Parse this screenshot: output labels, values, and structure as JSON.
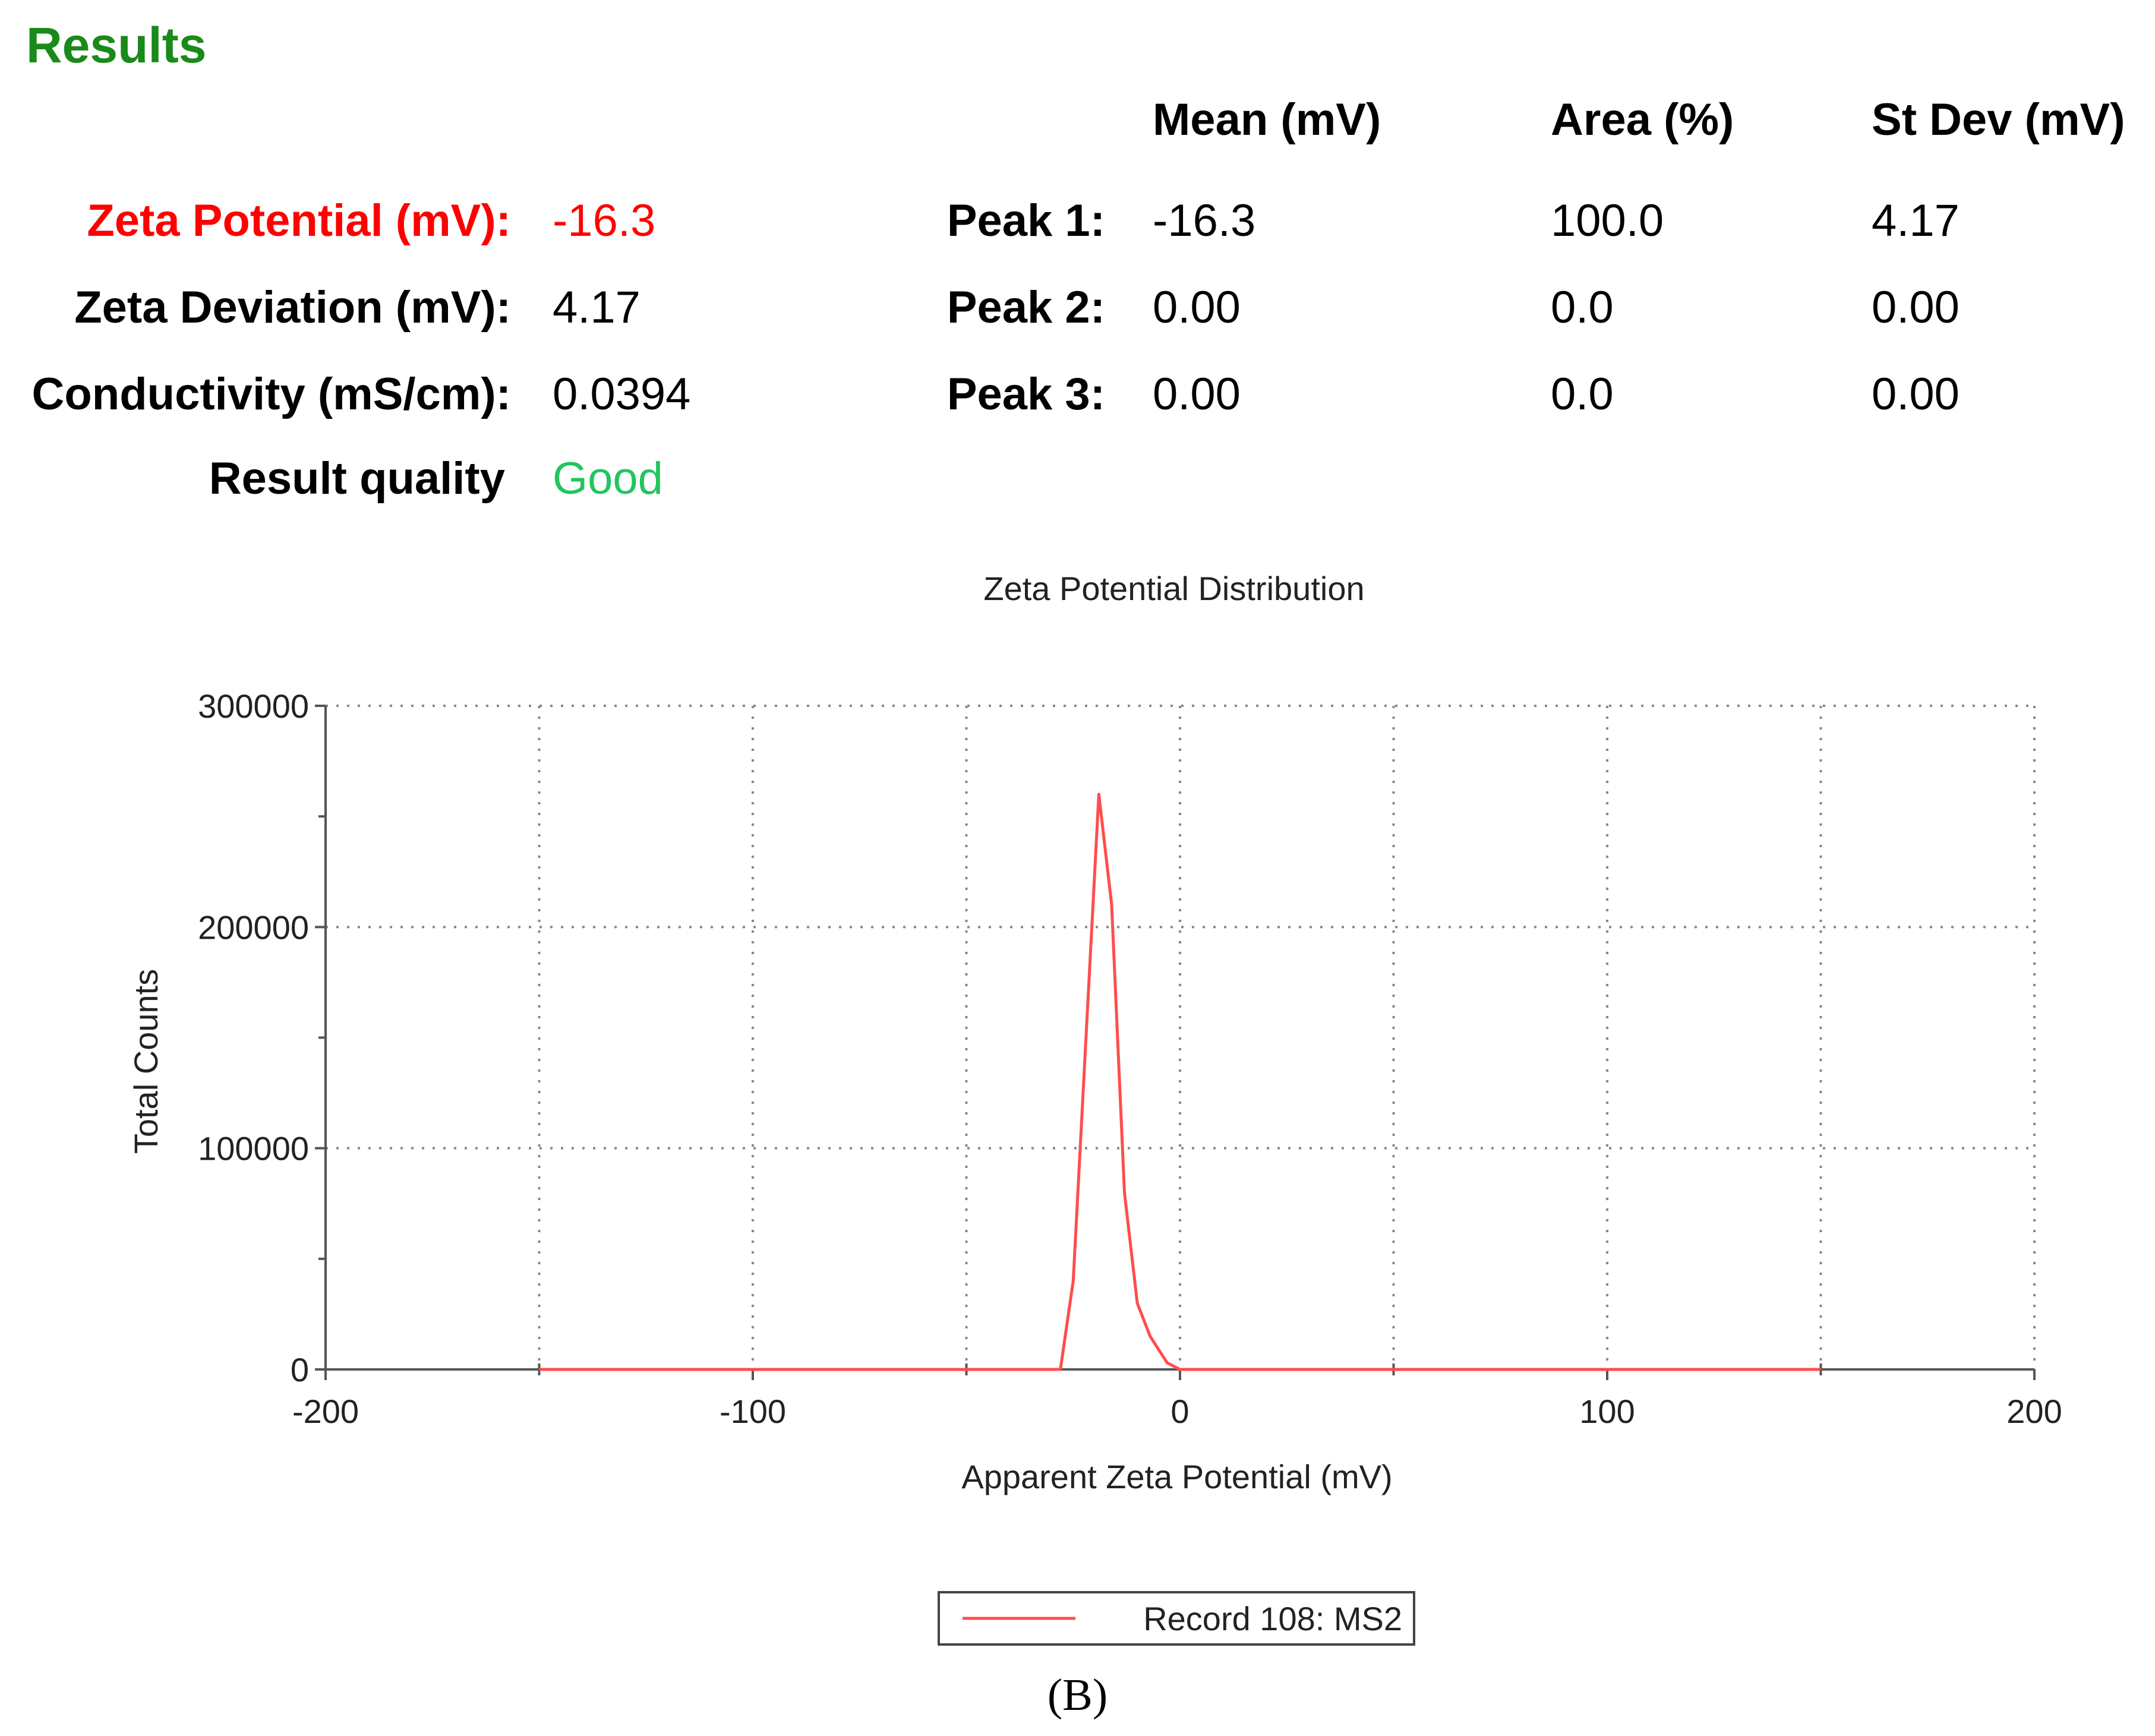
{
  "results": {
    "title": "Results",
    "headers": {
      "mean": "Mean (mV)",
      "area": "Area (%)",
      "stdev": "St Dev (mV)"
    },
    "summary": [
      {
        "label": "Zeta Potential (mV):",
        "value": "-16.3",
        "color": "#ff0000"
      },
      {
        "label": "Zeta Deviation (mV):",
        "value": "4.17"
      },
      {
        "label": "Conductivity (mS/cm):",
        "value": "0.0394"
      },
      {
        "label": "Result quality",
        "value": "Good",
        "color": "#22c55e"
      }
    ],
    "peaks": [
      {
        "label": "Peak 1:",
        "mean": "-16.3",
        "area": "100.0",
        "stdev": "4.17"
      },
      {
        "label": "Peak 2:",
        "mean": "0.00",
        "area": "0.0",
        "stdev": "0.00"
      },
      {
        "label": "Peak 3:",
        "mean": "0.00",
        "area": "0.0",
        "stdev": "0.00"
      }
    ]
  },
  "chart_data": {
    "type": "line",
    "title": "Zeta Potential Distribution",
    "xlabel": "Apparent Zeta Potential (mV)",
    "ylabel": "Total Counts",
    "xlim": [
      -200,
      200
    ],
    "ylim": [
      0,
      300000
    ],
    "x_ticks": [
      "-200",
      "-100",
      "0",
      "100",
      "200"
    ],
    "y_ticks": [
      "0",
      "100000",
      "200000",
      "300000"
    ],
    "grid": true,
    "legend_position": "bottom-center",
    "series": [
      {
        "name": "Record 108: MS2",
        "color": "#ff4d4d",
        "x": [
          -150,
          -28,
          -25,
          -22,
          -19,
          -16,
          -13,
          -10,
          -7,
          -3,
          0,
          150
        ],
        "y": [
          0,
          0,
          40000,
          150000,
          260000,
          210000,
          80000,
          30000,
          15000,
          3000,
          0,
          0
        ]
      }
    ]
  },
  "panel_label": "(B)"
}
